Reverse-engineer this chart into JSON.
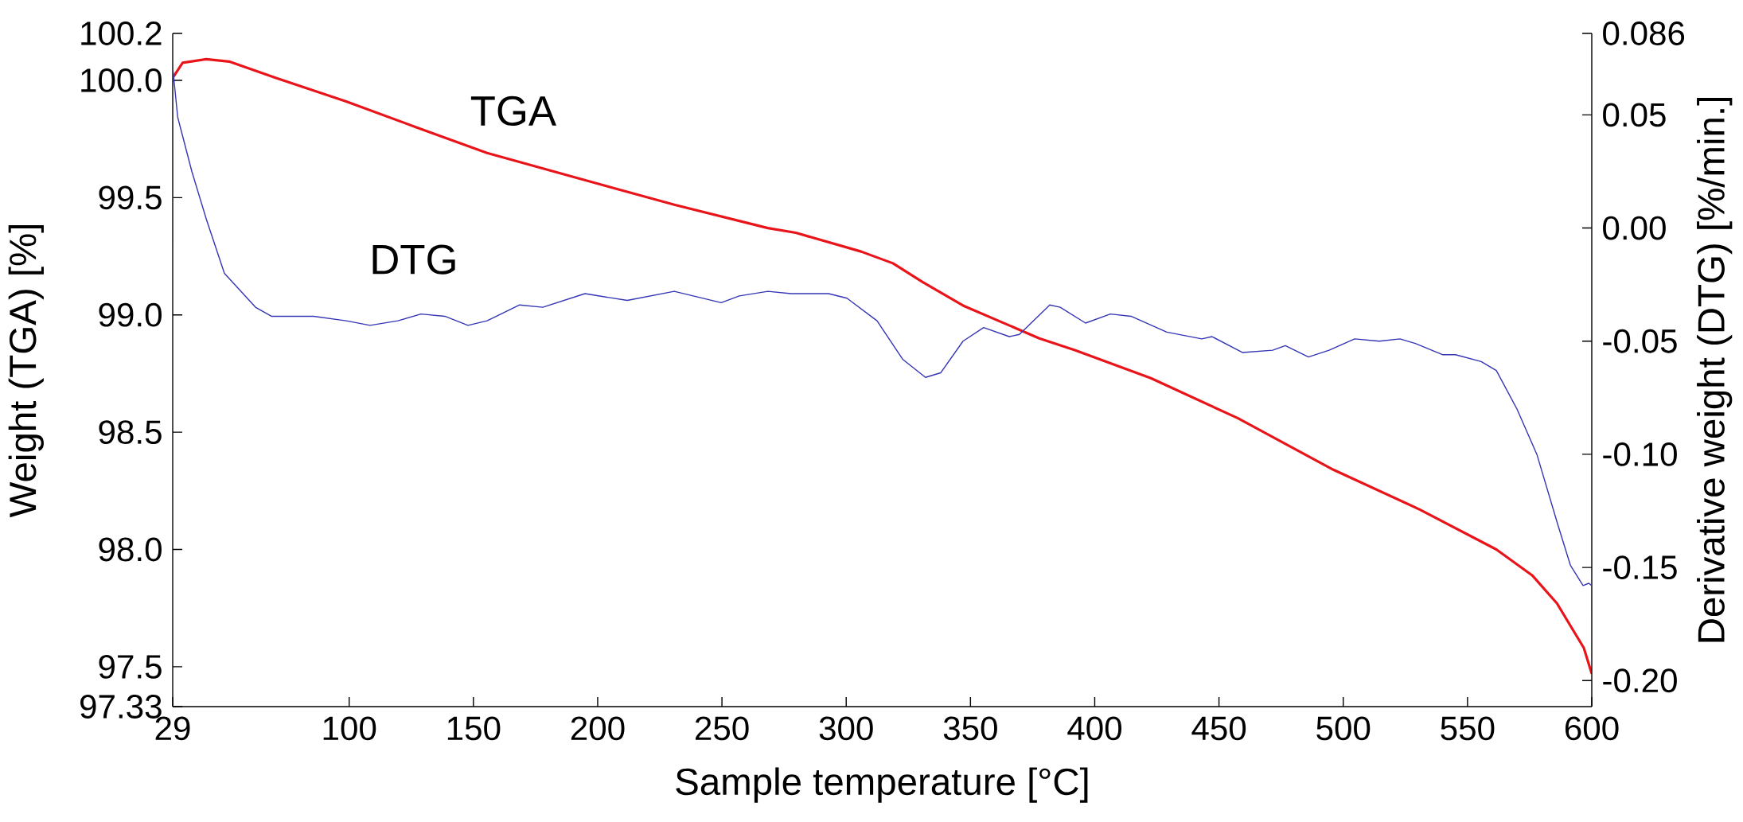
{
  "chart_data": {
    "type": "line",
    "xlabel": "Sample temperature [°C]",
    "ylabel": "Weight (TGA) [%]",
    "y2label": "Derivative weight (DTG) [%/min.]",
    "xlim": [
      29,
      600
    ],
    "xticks": [
      29,
      100,
      150,
      200,
      250,
      300,
      350,
      400,
      450,
      500,
      550,
      600
    ],
    "ylim": [
      97.33,
      100.2
    ],
    "yticks": [
      97.33,
      97.5,
      {
        "value": 98.0,
        "label": "98.0"
      },
      98.5,
      {
        "value": 99.0,
        "label": "99.0"
      },
      99.5,
      {
        "value": 100.0,
        "label": "100.0"
      },
      100.2
    ],
    "y2lim": [
      -0.2115,
      0.086
    ],
    "y2ticks": [
      {
        "value": -0.2,
        "label": "-0.20"
      },
      -0.15,
      {
        "value": -0.1,
        "label": "-0.10"
      },
      -0.05,
      {
        "value": 0.0,
        "label": "0.00"
      },
      0.05,
      0.086
    ],
    "series": [
      {
        "name": "TGA",
        "color": "#e8141a",
        "x": [
          29,
          33,
          42.5,
          51.7,
          70.6,
          98.8,
          127,
          155.5,
          193,
          230.8,
          268.5,
          279.7,
          306,
          318.8,
          330.7,
          347,
          377.7,
          392,
          422.6,
          457.5,
          496,
          530.8,
          561.6,
          576,
          586,
          596.8,
          600
        ],
        "values": [
          100.01,
          100.075,
          100.09,
          100.08,
          100.01,
          99.91,
          99.8,
          99.69,
          99.58,
          99.47,
          99.37,
          99.35,
          99.27,
          99.22,
          99.14,
          99.04,
          98.9,
          98.85,
          98.73,
          98.56,
          98.34,
          98.17,
          98.0,
          97.89,
          97.77,
          97.58,
          97.47
        ]
      },
      {
        "name": "DTG",
        "color": "#3535b5",
        "axis": "y2",
        "x": [
          29,
          29,
          29,
          31,
          36.7,
          42.5,
          49.8,
          62.3,
          68.7,
          85.7,
          98.8,
          108.4,
          119.6,
          128.9,
          138.5,
          147.8,
          155.5,
          168.6,
          177.9,
          194.9,
          211.9,
          230.8,
          249.7,
          257,
          268.5,
          277.8,
          292.9,
          300.3,
          312.4,
          322.7,
          331.9,
          338,
          347,
          355.3,
          365.6,
          369.7,
          381.9,
          386.1,
          396.3,
          406.3,
          414.6,
          429,
          443.1,
          447.2,
          459.4,
          471.6,
          476.7,
          486,
          494.3,
          504.6,
          514.5,
          522.8,
          529,
          540.1,
          545.2,
          555.5,
          561.6,
          569.9,
          577.9,
          586.3,
          591.4,
          596.5,
          598.8,
          600,
          600
        ],
        "values": [
          -0.007,
          0.072,
          0.071,
          0.049,
          0.025,
          0.004,
          -0.02,
          -0.035,
          -0.039,
          -0.039,
          -0.041,
          -0.043,
          -0.041,
          -0.038,
          -0.039,
          -0.043,
          -0.041,
          -0.034,
          -0.035,
          -0.029,
          -0.032,
          -0.028,
          -0.033,
          -0.03,
          -0.028,
          -0.029,
          -0.029,
          -0.031,
          -0.041,
          -0.058,
          -0.066,
          -0.064,
          -0.05,
          -0.044,
          -0.048,
          -0.047,
          -0.034,
          -0.035,
          -0.042,
          -0.038,
          -0.039,
          -0.046,
          -0.049,
          -0.048,
          -0.055,
          -0.054,
          -0.052,
          -0.057,
          -0.054,
          -0.049,
          -0.05,
          -0.049,
          -0.051,
          -0.056,
          -0.056,
          -0.059,
          -0.063,
          -0.08,
          -0.1,
          -0.131,
          -0.149,
          -0.158,
          -0.157,
          -0.158,
          -0.17
        ]
      }
    ]
  }
}
